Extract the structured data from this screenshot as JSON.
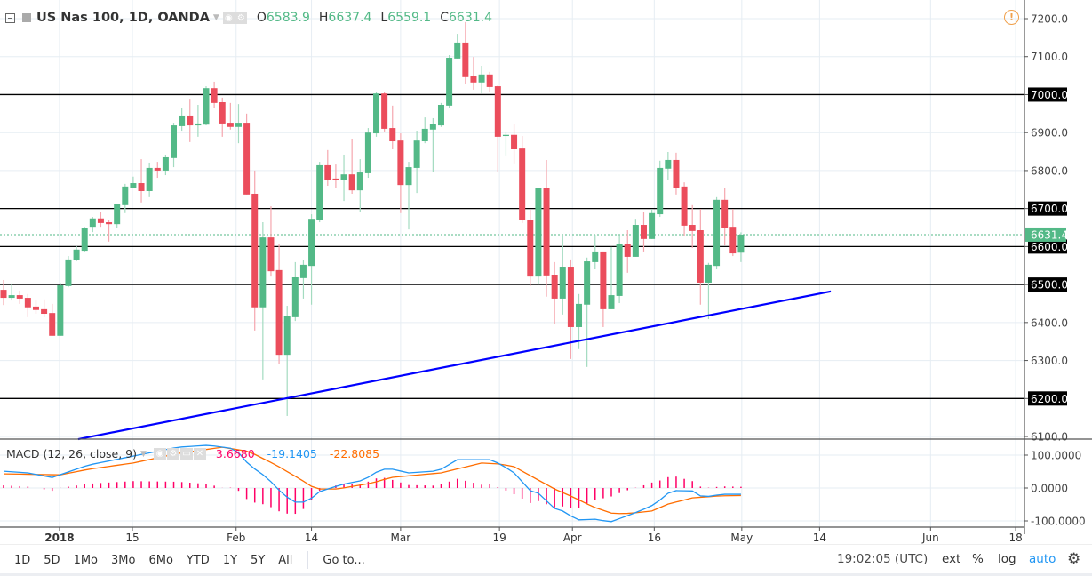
{
  "header": {
    "title": "US Nas 100, 1D, OANDA",
    "o_label": "O",
    "o_value": "6583.9",
    "h_label": "H",
    "h_value": "6637.4",
    "l_label": "L",
    "l_value": "6559.1",
    "c_label": "C",
    "c_value": "6631.4"
  },
  "macd": {
    "title": "MACD (12, 26, close, 9)",
    "hist_value": "3.6680",
    "macd_value": "-19.1405",
    "signal_value": "-22.8085",
    "axis_labels": [
      "100.0000",
      "0.0000",
      "-100.0000"
    ],
    "macd_keyframes": [
      [
        0,
        51
      ],
      [
        3,
        46
      ],
      [
        6,
        32
      ],
      [
        10.5,
        70
      ],
      [
        16,
        97
      ],
      [
        21.5,
        124
      ],
      [
        25.3,
        130
      ],
      [
        28.6,
        119
      ],
      [
        30.3,
        70
      ],
      [
        32.5,
        32
      ],
      [
        34.6,
        -22
      ],
      [
        36,
        -43
      ],
      [
        37.4,
        -43
      ],
      [
        39,
        -11
      ],
      [
        41.8,
        11
      ],
      [
        44.5,
        24
      ],
      [
        45.6,
        43
      ],
      [
        46.7,
        57
      ],
      [
        48,
        57
      ],
      [
        50,
        46
      ],
      [
        53,
        51
      ],
      [
        54,
        57
      ],
      [
        56,
        86
      ],
      [
        60,
        86
      ],
      [
        61.3,
        73
      ],
      [
        63,
        46
      ],
      [
        65,
        -8
      ],
      [
        66,
        -16
      ],
      [
        68,
        -62
      ],
      [
        69,
        -70
      ],
      [
        70.8,
        -97
      ],
      [
        73,
        -95
      ],
      [
        74.9,
        -103
      ],
      [
        77,
        -84
      ],
      [
        78.5,
        -70
      ],
      [
        80.4,
        -49
      ],
      [
        82,
        -16
      ],
      [
        83,
        -8
      ],
      [
        85,
        -9
      ],
      [
        86,
        -24
      ],
      [
        87.3,
        -26
      ],
      [
        88.4,
        -19
      ],
      [
        91,
        -19.14
      ]
    ],
    "signal_keyframes": [
      [
        0,
        43
      ],
      [
        7,
        40
      ],
      [
        10.5,
        57
      ],
      [
        16,
        76
      ],
      [
        21.5,
        105
      ],
      [
        27,
        124
      ],
      [
        30.3,
        111
      ],
      [
        33.6,
        70
      ],
      [
        36.8,
        24
      ],
      [
        38.5,
        -3
      ],
      [
        41.2,
        -3
      ],
      [
        44.5,
        11
      ],
      [
        45.6,
        16
      ],
      [
        47.8,
        32
      ],
      [
        54,
        46
      ],
      [
        59,
        76
      ],
      [
        61.3,
        73
      ],
      [
        63,
        65
      ],
      [
        66,
        24
      ],
      [
        68,
        -3
      ],
      [
        70.5,
        -30
      ],
      [
        72.7,
        -57
      ],
      [
        75.2,
        -78
      ],
      [
        77.4,
        -77
      ],
      [
        80,
        -70
      ],
      [
        82,
        -49
      ],
      [
        85,
        -30
      ],
      [
        88.4,
        -24
      ],
      [
        91,
        -22.81
      ]
    ]
  },
  "price_axis": {
    "labels": [
      "7200.0",
      "7100.0",
      "7000.0",
      "6900.0",
      "6800.0",
      "6700.0",
      "6600.0",
      "6500.0",
      "6400.0",
      "6300.0",
      "6200.0",
      "6100.0"
    ],
    "current_price": "6631.4",
    "horizontal_levels": [
      7000,
      6700,
      6600,
      6500,
      6200
    ]
  },
  "trendline": {
    "from": [
      9.2,
      6093
    ],
    "to": [
      102.1,
      6482
    ],
    "color": "#0000ff"
  },
  "colors": {
    "up": "#53b987",
    "down": "#eb4d5c",
    "macd": "#2196f3",
    "signal": "#ff6d00",
    "hist": "#ff0066"
  },
  "time_axis": [
    {
      "label": "2018",
      "bar": 6.9,
      "bold": true
    },
    {
      "label": "15",
      "bar": 15.9
    },
    {
      "label": "Feb",
      "bar": 28.7
    },
    {
      "label": "14",
      "bar": 38.0
    },
    {
      "label": "Mar",
      "bar": 49.0
    },
    {
      "label": "19",
      "bar": 61.2
    },
    {
      "label": "Apr",
      "bar": 70.2
    },
    {
      "label": "16",
      "bar": 80.3
    },
    {
      "label": "May",
      "bar": 91.1
    },
    {
      "label": "14",
      "bar": 100.7
    },
    {
      "label": "Jun",
      "bar": 114.4
    },
    {
      "label": "18",
      "bar": 124.9
    }
  ],
  "chart_data": {
    "type": "candlestick",
    "symbol": "US Nas 100",
    "interval": "1D",
    "ylim": [
      6100,
      7200
    ],
    "ohlc": [
      [
        6486,
        6512,
        6446,
        6465
      ],
      [
        6465,
        6503,
        6458,
        6472
      ],
      [
        6472,
        6484,
        6449,
        6463
      ],
      [
        6465,
        6475,
        6414,
        6440
      ],
      [
        6442,
        6458,
        6423,
        6433
      ],
      [
        6435,
        6461,
        6414,
        6423
      ],
      [
        6425,
        6449,
        6365,
        6365
      ],
      [
        6365,
        6505,
        6365,
        6498
      ],
      [
        6496,
        6575,
        6493,
        6566
      ],
      [
        6564,
        6601,
        6561,
        6592
      ],
      [
        6589,
        6652,
        6585,
        6650
      ],
      [
        6652,
        6678,
        6638,
        6674
      ],
      [
        6674,
        6692,
        6652,
        6662
      ],
      [
        6664,
        6671,
        6613,
        6659
      ],
      [
        6659,
        6713,
        6648,
        6711
      ],
      [
        6709,
        6765,
        6688,
        6758
      ],
      [
        6755,
        6784,
        6755,
        6767
      ],
      [
        6767,
        6830,
        6716,
        6746
      ],
      [
        6746,
        6821,
        6730,
        6807
      ],
      [
        6807,
        6823,
        6781,
        6800
      ],
      [
        6800,
        6842,
        6788,
        6835
      ],
      [
        6833,
        6926,
        6809,
        6919
      ],
      [
        6917,
        6966,
        6905,
        6945
      ],
      [
        6945,
        6989,
        6875,
        6919
      ],
      [
        6919,
        6973,
        6889,
        6924
      ],
      [
        6921,
        7022,
        6919,
        7017
      ],
      [
        7017,
        7034,
        6966,
        6978
      ],
      [
        6980,
        6992,
        6889,
        6924
      ],
      [
        6926,
        6978,
        6908,
        6915
      ],
      [
        6915,
        6975,
        6872,
        6926
      ],
      [
        6926,
        6950,
        6737,
        6737
      ],
      [
        6739,
        6800,
        6379,
        6440
      ],
      [
        6440,
        6664,
        6250,
        6624
      ],
      [
        6624,
        6706,
        6521,
        6535
      ],
      [
        6538,
        6606,
        6290,
        6315
      ],
      [
        6315,
        6444,
        6154,
        6416
      ],
      [
        6414,
        6559,
        6404,
        6519
      ],
      [
        6517,
        6564,
        6463,
        6552
      ],
      [
        6549,
        6685,
        6447,
        6673
      ],
      [
        6671,
        6823,
        6664,
        6814
      ],
      [
        6814,
        6854,
        6760,
        6776
      ],
      [
        6779,
        6816,
        6755,
        6776
      ],
      [
        6776,
        6842,
        6720,
        6790
      ],
      [
        6790,
        6884,
        6739,
        6748
      ],
      [
        6748,
        6830,
        6692,
        6795
      ],
      [
        6793,
        6912,
        6781,
        6900
      ],
      [
        6898,
        7006,
        6889,
        7003
      ],
      [
        7003,
        7008,
        6903,
        6910
      ],
      [
        6912,
        6971,
        6856,
        6877
      ],
      [
        6879,
        6898,
        6688,
        6762
      ],
      [
        6762,
        6823,
        6645,
        6809
      ],
      [
        6807,
        6905,
        6741,
        6879
      ],
      [
        6877,
        6940,
        6872,
        6910
      ],
      [
        6908,
        6938,
        6797,
        6922
      ],
      [
        6919,
        6978,
        6915,
        6973
      ],
      [
        6971,
        7104,
        6964,
        7097
      ],
      [
        7095,
        7160,
        7095,
        7137
      ],
      [
        7137,
        7191,
        7027,
        7046
      ],
      [
        7048,
        7099,
        7013,
        7032
      ],
      [
        7032,
        7076,
        7003,
        7053
      ],
      [
        7053,
        7060,
        7008,
        7020
      ],
      [
        7022,
        7024,
        6797,
        6889
      ],
      [
        6891,
        6903,
        6840,
        6894
      ],
      [
        6894,
        6922,
        6819,
        6856
      ],
      [
        6858,
        6891,
        6662,
        6669
      ],
      [
        6671,
        6697,
        6496,
        6521
      ],
      [
        6521,
        6755,
        6500,
        6755
      ],
      [
        6755,
        6828,
        6468,
        6524
      ],
      [
        6526,
        6559,
        6397,
        6463
      ],
      [
        6463,
        6629,
        6421,
        6547
      ],
      [
        6547,
        6566,
        6304,
        6388
      ],
      [
        6388,
        6475,
        6330,
        6449
      ],
      [
        6447,
        6571,
        6283,
        6561
      ],
      [
        6559,
        6631,
        6540,
        6587
      ],
      [
        6587,
        6587,
        6388,
        6435
      ],
      [
        6435,
        6599,
        6435,
        6472
      ],
      [
        6470,
        6631,
        6451,
        6606
      ],
      [
        6606,
        6643,
        6531,
        6573
      ],
      [
        6573,
        6673,
        6573,
        6657
      ],
      [
        6657,
        6692,
        6587,
        6620
      ],
      [
        6620,
        6699,
        6620,
        6688
      ],
      [
        6685,
        6826,
        6678,
        6807
      ],
      [
        6805,
        6849,
        6776,
        6828
      ],
      [
        6828,
        6847,
        6737,
        6755
      ],
      [
        6758,
        6769,
        6627,
        6655
      ],
      [
        6657,
        6709,
        6596,
        6641
      ],
      [
        6643,
        6699,
        6447,
        6505
      ],
      [
        6505,
        6557,
        6409,
        6552
      ],
      [
        6549,
        6730,
        6540,
        6723
      ],
      [
        6723,
        6753,
        6603,
        6650
      ],
      [
        6652,
        6699,
        6575,
        6582
      ],
      [
        6583.9,
        6637.4,
        6559.1,
        6631.4
      ]
    ]
  },
  "toolbar": {
    "ranges": [
      "1D",
      "5D",
      "1Mo",
      "3Mo",
      "6Mo",
      "YTD",
      "1Y",
      "5Y",
      "All"
    ],
    "goto": "Go to...",
    "clock": "19:02:05 (UTC)",
    "ext": "ext",
    "percent": "%",
    "log": "log",
    "auto": "auto"
  }
}
